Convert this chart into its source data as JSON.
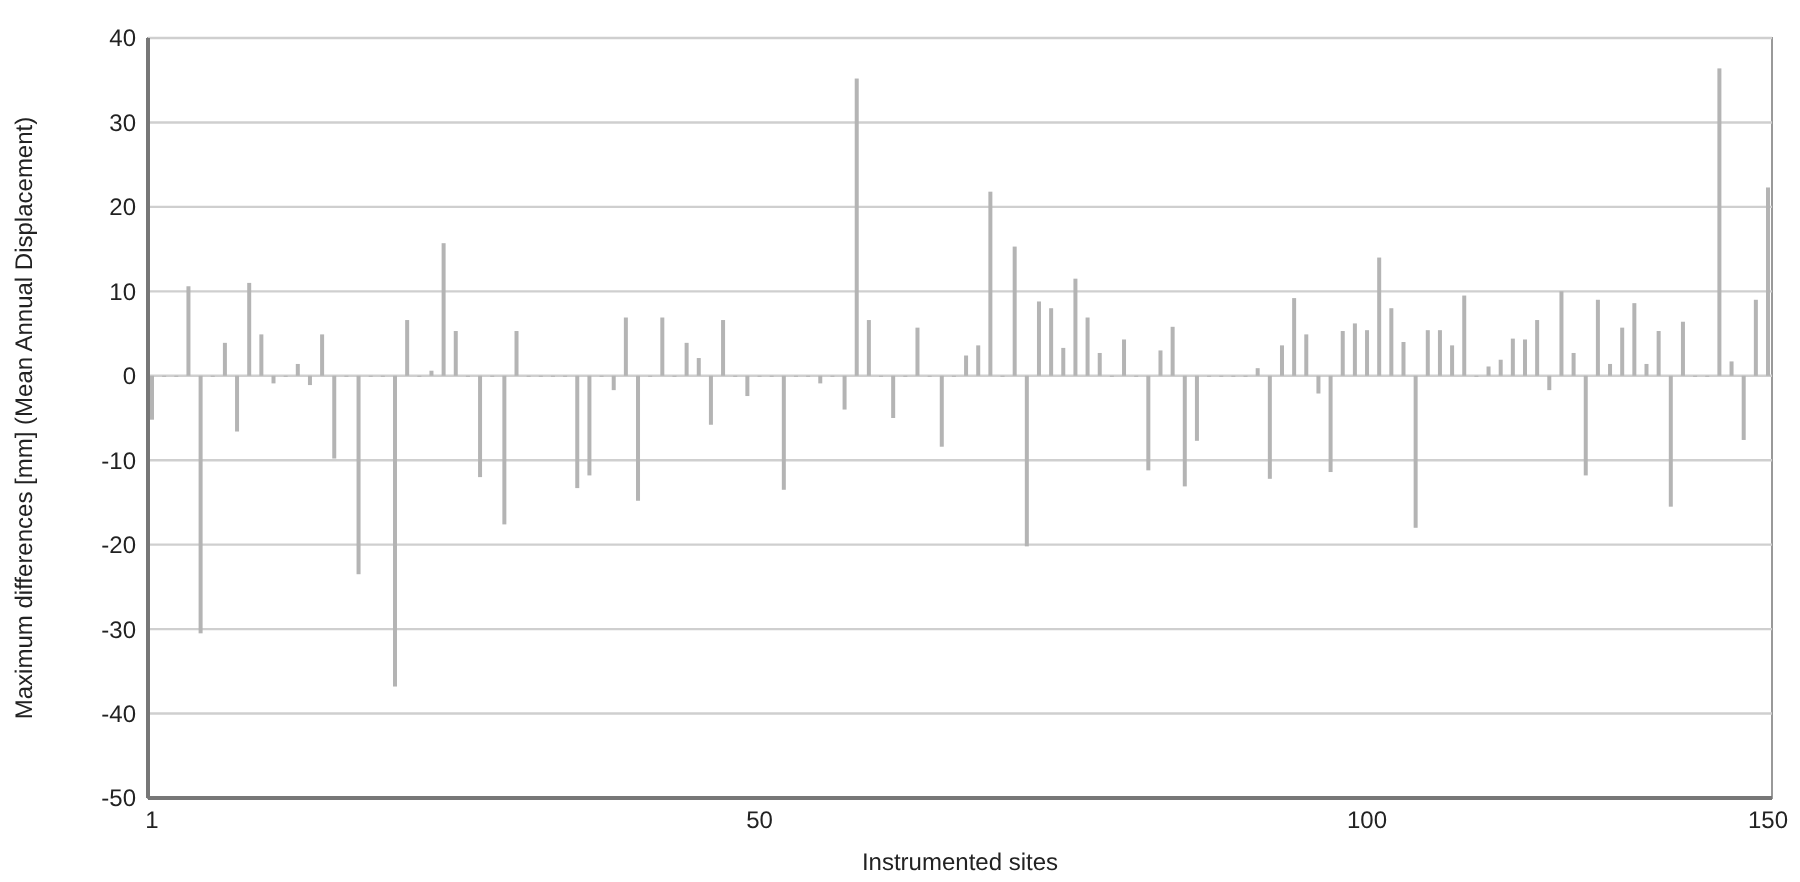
{
  "chart_data": {
    "type": "bar",
    "xlabel": "Instrumented sites",
    "ylabel": "Maximum  differences [mm] (Mean Annual Displacement)",
    "categories": [
      "1",
      null,
      null,
      null,
      null,
      null,
      null,
      null,
      null,
      null,
      null,
      null,
      null,
      null,
      null,
      null,
      null,
      null,
      null,
      null,
      null,
      null,
      null,
      null,
      null,
      null,
      null,
      null,
      null,
      null,
      null,
      null,
      null,
      null,
      null,
      null,
      null,
      null,
      null,
      null,
      null,
      null,
      null,
      null,
      null,
      null,
      null,
      null,
      null,
      null,
      "50",
      null,
      null,
      null,
      null,
      null,
      null,
      null,
      null,
      null,
      null,
      null,
      null,
      null,
      null,
      null,
      null,
      null,
      null,
      null,
      null,
      null,
      null,
      null,
      null,
      null,
      null,
      null,
      null,
      null,
      null,
      null,
      null,
      null,
      null,
      null,
      null,
      null,
      null,
      null,
      null,
      null,
      null,
      null,
      null,
      null,
      null,
      null,
      null,
      null,
      "100",
      null,
      null,
      null,
      null,
      null,
      null,
      null,
      null,
      null,
      null,
      null,
      null,
      null,
      null,
      null,
      null,
      null,
      null,
      null,
      null,
      null,
      null,
      null,
      null,
      null,
      null,
      null,
      null,
      null,
      null,
      null,
      null,
      "150"
    ],
    "values": [
      -5.2,
      0,
      0,
      10.6,
      -30.5,
      0,
      3.9,
      -6.6,
      11.0,
      4.9,
      -0.9,
      0,
      1.4,
      -1.1,
      4.9,
      -9.8,
      0,
      -23.5,
      0,
      0,
      -36.8,
      6.6,
      0,
      0.6,
      15.7,
      5.3,
      0,
      -12.0,
      0,
      -17.6,
      5.3,
      0,
      0,
      0,
      0,
      -13.3,
      -11.8,
      0,
      -1.7,
      6.9,
      -14.8,
      0,
      6.9,
      0,
      3.9,
      2.1,
      -5.8,
      6.6,
      0,
      -2.4,
      0,
      0,
      -13.5,
      0,
      0,
      -0.9,
      0,
      -4.0,
      35.2,
      6.6,
      0,
      -5.0,
      0,
      5.7,
      0,
      -8.4,
      0,
      2.4,
      3.6,
      21.8,
      0,
      15.3,
      -20.2,
      8.8,
      8.0,
      3.3,
      11.5,
      6.9,
      2.7,
      0,
      4.3,
      0,
      -11.2,
      3.0,
      5.8,
      -13.1,
      -7.7,
      0,
      0,
      0,
      0,
      0.9,
      -12.2,
      3.6,
      9.2,
      4.9,
      -2.1,
      -11.4,
      5.3,
      6.2,
      5.4,
      14.0,
      8.0,
      4.0,
      -18.0,
      5.4,
      5.4,
      3.6,
      9.5,
      0,
      1.1,
      1.9,
      4.4,
      4.3,
      6.6,
      -1.7,
      10.0,
      2.7,
      -11.8,
      9.0,
      1.4,
      5.7,
      8.6,
      1.4,
      5.3,
      -15.5,
      6.4,
      0,
      0,
      36.4,
      1.7,
      -7.6,
      9.0,
      22.3
    ],
    "color": "#b4b4b4",
    "ylim": [
      -50,
      40
    ],
    "yticks": [
      -50,
      -40,
      -30,
      -20,
      -10,
      0,
      10,
      20,
      30,
      40
    ],
    "grid": "y"
  }
}
